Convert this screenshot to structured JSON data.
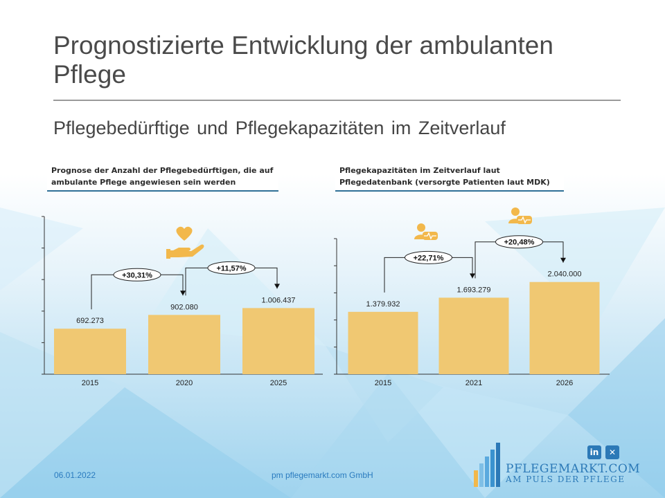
{
  "slide": {
    "title": "Prognostizierte Entwicklung der ambulanten Pflege",
    "subtitle": "Pflegebedürftige und Pflegekapazitäten im Zeitverlauf"
  },
  "footer": {
    "date": "06.01.2022",
    "company": "pm pflegemarkt.com GmbH",
    "brand_name": "PFLEGEMARKT.COM",
    "brand_tagline": "AM PULS DER PFLEGE",
    "linkedin_glyph": "in",
    "xing_glyph": "✕"
  },
  "colors": {
    "bar": "#f0c872",
    "icon": "#f2b84b",
    "brand": "#2c79b7",
    "header_rule": "#2f6f96"
  },
  "icons": {
    "left": "heart-in-hand-icon",
    "right": [
      "nurse-icon",
      "nurse-icon"
    ]
  },
  "chart_data": [
    {
      "type": "bar",
      "title": "Prognose der Anzahl der Pflegebedürftigen, die auf ambulante Pflege angewiesen sein werden",
      "categories": [
        "2015",
        "2020",
        "2025"
      ],
      "values": [
        692273,
        902080,
        1006437
      ],
      "value_labels": [
        "692.273",
        "902.080",
        "1.006.437"
      ],
      "ylim": [
        0,
        2400000
      ],
      "annotations": [
        {
          "from": "2015",
          "to": "2020",
          "label": "+30,31%"
        },
        {
          "from": "2020",
          "to": "2025",
          "label": "+11,57%"
        }
      ],
      "grid": false,
      "legend": false
    },
    {
      "type": "bar",
      "title": "Pflegekapazitäten im Zeitverlauf laut Pflegedatenbank (versorgte Patienten laut MDK)",
      "categories": [
        "2015",
        "2021",
        "2026"
      ],
      "values": [
        1379932,
        1693279,
        2040000
      ],
      "value_labels": [
        "1.379.932",
        "1.693.279",
        "2.040.000"
      ],
      "ylim": [
        0,
        3000000
      ],
      "annotations": [
        {
          "from": "2015",
          "to": "2021",
          "label": "+22,71%"
        },
        {
          "from": "2021",
          "to": "2026",
          "label": "+20,48%"
        }
      ],
      "grid": false,
      "legend": false
    }
  ]
}
